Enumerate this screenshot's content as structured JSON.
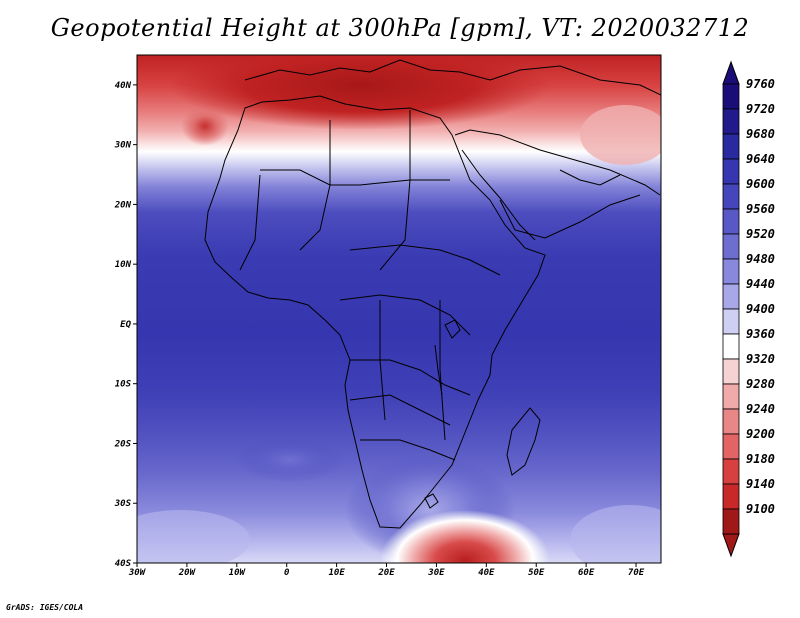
{
  "title": "Geopotential Height at 300hPa [gpm], VT: 2020032712",
  "credit": "GrADS: IGES/COLA",
  "axes": {
    "x_labels": [
      "30W",
      "20W",
      "10W",
      "0",
      "10E",
      "20E",
      "30E",
      "40E",
      "50E",
      "60E",
      "70E"
    ],
    "y_labels": [
      "40N",
      "30N",
      "20N",
      "10N",
      "EQ",
      "10S",
      "20S",
      "30S",
      "40S"
    ],
    "lon_range": [
      -30,
      75
    ],
    "lat_range": [
      -40,
      45
    ]
  },
  "legend": {
    "levels": [
      "9760",
      "9720",
      "9680",
      "9640",
      "9600",
      "9560",
      "9520",
      "9480",
      "9440",
      "9400",
      "9360",
      "9320",
      "9280",
      "9240",
      "9200",
      "9180",
      "9140",
      "9100"
    ],
    "colors": [
      "#1a0d78",
      "#221a8c",
      "#2a2aa0",
      "#3636b0",
      "#4545bc",
      "#5858c6",
      "#6e6ed0",
      "#8888dc",
      "#a8a8e8",
      "#cfcff4",
      "#ffffff",
      "#f6d2d2",
      "#f0aaaa",
      "#e98686",
      "#e26464",
      "#d84040",
      "#c82828",
      "#a01818"
    ]
  }
}
